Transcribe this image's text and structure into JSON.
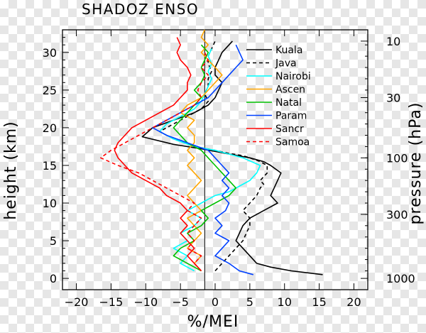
{
  "chart_data": {
    "type": "line",
    "title": "SHADOZ ENSO",
    "xlabel": "%/MEI",
    "ylabel": "height (km)",
    "y2label": "pressure (hPa)",
    "xlim": [
      -22,
      22
    ],
    "ylim": [
      -1.5,
      33
    ],
    "xticks": [
      "−20",
      "−15",
      "−10",
      "−5",
      "0",
      "5",
      "10",
      "15",
      "20"
    ],
    "xtick_values": [
      -20,
      -15,
      -10,
      -5,
      0,
      5,
      10,
      15,
      20
    ],
    "yticks": [
      "0",
      "5",
      "10",
      "15",
      "20",
      "25",
      "30"
    ],
    "ytick_values": [
      0,
      5,
      10,
      15,
      20,
      25,
      30
    ],
    "pressure_ticks": [
      {
        "label": "10",
        "height": 31.5
      },
      {
        "label": "30",
        "height": 24.0
      },
      {
        "label": "100",
        "height": 16.0
      },
      {
        "label": "300",
        "height": 8.5
      },
      {
        "label": "1000",
        "height": 0.0
      }
    ],
    "reference_x": -1.5,
    "legend_position": "top-right",
    "series": [
      {
        "name": "Kuala",
        "color": "#000000",
        "dash": "",
        "x": [
          15.5,
          11,
          8,
          6,
          5,
          4,
          3,
          3.5,
          4,
          5,
          6,
          7,
          8,
          9,
          8,
          8.5,
          9,
          9.5,
          8,
          7,
          5,
          2,
          -2,
          -6,
          -10.5,
          -9,
          -6,
          -3,
          -1,
          0,
          0.5,
          1,
          0,
          0,
          0.5,
          1,
          2.5
        ],
        "y": [
          0.5,
          1,
          1.5,
          2,
          3,
          4,
          5,
          6,
          7,
          8,
          8.5,
          9,
          9.5,
          10,
          11,
          12,
          13,
          14,
          15,
          15.5,
          16,
          16.5,
          17.2,
          17.8,
          18.8,
          20,
          21,
          22,
          23,
          24,
          25,
          26,
          27,
          28,
          29,
          30,
          31.5
        ]
      },
      {
        "name": "Java",
        "color": "#000000",
        "dash": "5,4",
        "x": [
          0,
          1,
          2,
          3,
          4,
          4.5,
          5,
          5,
          4,
          5,
          6,
          6.5,
          7,
          6.5,
          7,
          7.5,
          7.5,
          6.5,
          5,
          4,
          2,
          0,
          -3,
          -6,
          -8,
          -6,
          -4,
          -2,
          -1,
          -1.5,
          -1,
          -1,
          -0.5,
          -1,
          -1,
          -0.5,
          0
        ],
        "y": [
          1,
          2,
          3,
          4,
          5,
          6,
          7,
          8,
          9,
          10,
          11,
          12,
          12.5,
          13,
          13.5,
          14,
          15,
          15.5,
          16,
          16.3,
          16.6,
          17,
          17.5,
          18.5,
          19.5,
          20.5,
          21.5,
          22.5,
          23.5,
          24.5,
          25.5,
          26.5,
          27.5,
          28.5,
          29.5,
          30.5,
          31.5
        ]
      },
      {
        "name": "Nairobi",
        "color": "#00ffff",
        "dash": "",
        "x": [
          -3,
          -5,
          -4,
          -6,
          -4,
          -5,
          -3,
          -2,
          -4,
          -3,
          -2,
          -1,
          0,
          2,
          3,
          4,
          5,
          6,
          6.5,
          4,
          2,
          0,
          -3,
          -6,
          -8,
          -7,
          -5,
          -3,
          -2,
          -1.5,
          -1,
          -0.5,
          -1,
          -0.5,
          -1,
          -0.5
        ],
        "y": [
          1,
          2,
          3,
          4,
          5,
          6,
          7,
          8,
          9,
          9.5,
          10,
          10.5,
          11,
          11.5,
          12,
          12.5,
          13,
          14,
          15,
          16,
          16.5,
          17,
          17.5,
          18.5,
          19.5,
          20.5,
          21.5,
          22.5,
          23.5,
          24.5,
          25.5,
          26.5,
          27.5,
          28.5,
          29.5,
          30.5
        ]
      },
      {
        "name": "Ascen",
        "color": "#ffa500",
        "dash": "",
        "x": [
          -2,
          -3,
          -2,
          -4,
          -3,
          -2,
          -3,
          -4,
          -2,
          -3,
          -4,
          -3,
          -2,
          -3,
          -4,
          -3,
          -4,
          -3,
          -3,
          -4,
          -3,
          -5,
          -4,
          -2,
          -1,
          0,
          1,
          0,
          -1,
          -2,
          -1,
          -2,
          -1.5
        ],
        "y": [
          1,
          2,
          3,
          4,
          5,
          6,
          7,
          8,
          9,
          10,
          11,
          12,
          13,
          14,
          15,
          16,
          17,
          18,
          19,
          20,
          21,
          22,
          23,
          24,
          25,
          26,
          27,
          28,
          29,
          30,
          31,
          32,
          33
        ]
      },
      {
        "name": "Natal",
        "color": "#00c000",
        "dash": "",
        "x": [
          -2,
          -4,
          -6,
          -5,
          -3,
          -4,
          -2,
          -1,
          -2,
          0,
          1,
          2,
          3,
          2,
          1,
          0,
          -1,
          -2,
          -3,
          -4,
          -5,
          -6,
          -5,
          -4,
          -3,
          -2,
          -3,
          -2,
          -1.5,
          -2,
          -1,
          -2
        ],
        "y": [
          1,
          2,
          3,
          4,
          5,
          6,
          7,
          8,
          9,
          10,
          10.5,
          11,
          12,
          13,
          14,
          15,
          16,
          17,
          17.5,
          18,
          19,
          20,
          21,
          22,
          23,
          24,
          25,
          26,
          27,
          28,
          30,
          31
        ]
      },
      {
        "name": "Param",
        "color": "#0040ff",
        "dash": "",
        "x": [
          5.5,
          3.5,
          2,
          0,
          1,
          2,
          0,
          1,
          0,
          1.5,
          2,
          1,
          2,
          1,
          2,
          1,
          0,
          -1,
          -4,
          -7,
          -9,
          -7,
          -5,
          -3,
          -1,
          0,
          1,
          2,
          3,
          4,
          3
        ],
        "y": [
          0.5,
          1,
          2,
          3,
          4,
          5,
          6,
          7,
          8,
          9,
          10,
          11,
          12,
          13,
          14,
          15,
          16,
          17,
          18,
          19,
          20,
          21,
          22,
          23,
          24,
          25,
          26,
          27,
          28,
          29,
          31
        ]
      },
      {
        "name": "Sancr",
        "color": "#ff0000",
        "dash": "",
        "x": [
          -2,
          -3,
          -4,
          -3,
          -4,
          -5,
          -4,
          -5,
          -4,
          -5,
          -6,
          -7,
          -8,
          -10,
          -12,
          -13,
          -14,
          -14.5,
          -14,
          -13,
          -12,
          -10,
          -8,
          -6,
          -5,
          -4,
          -4,
          -3.5,
          -4,
          -5,
          -5.5,
          -5,
          -5.5
        ],
        "y": [
          1,
          2,
          3,
          4,
          5,
          6,
          7,
          8,
          9,
          10,
          10.5,
          11,
          12,
          13,
          14,
          15,
          16,
          17,
          18,
          19,
          20,
          21,
          22,
          23,
          24,
          25,
          26,
          27,
          28,
          29,
          30,
          31,
          32
        ]
      },
      {
        "name": "Samoa",
        "color": "#ff0000",
        "dash": "5,4",
        "x": [
          -2,
          -3,
          -2,
          -4,
          -3,
          -4,
          -3,
          -2,
          -4,
          -3,
          -5,
          -7,
          -9,
          -11,
          -14,
          -16.5,
          -15,
          -13,
          -11,
          -9,
          -7,
          -5,
          -3,
          -2,
          -2.5,
          -2,
          -1,
          -2,
          -1,
          -1.5
        ],
        "y": [
          1,
          2,
          3,
          4,
          5,
          6,
          7,
          8,
          9,
          10,
          11,
          12,
          13,
          14,
          15,
          16,
          17,
          18,
          19,
          20,
          21,
          22,
          23,
          24,
          25,
          26,
          27,
          28,
          29,
          30
        ]
      }
    ]
  }
}
